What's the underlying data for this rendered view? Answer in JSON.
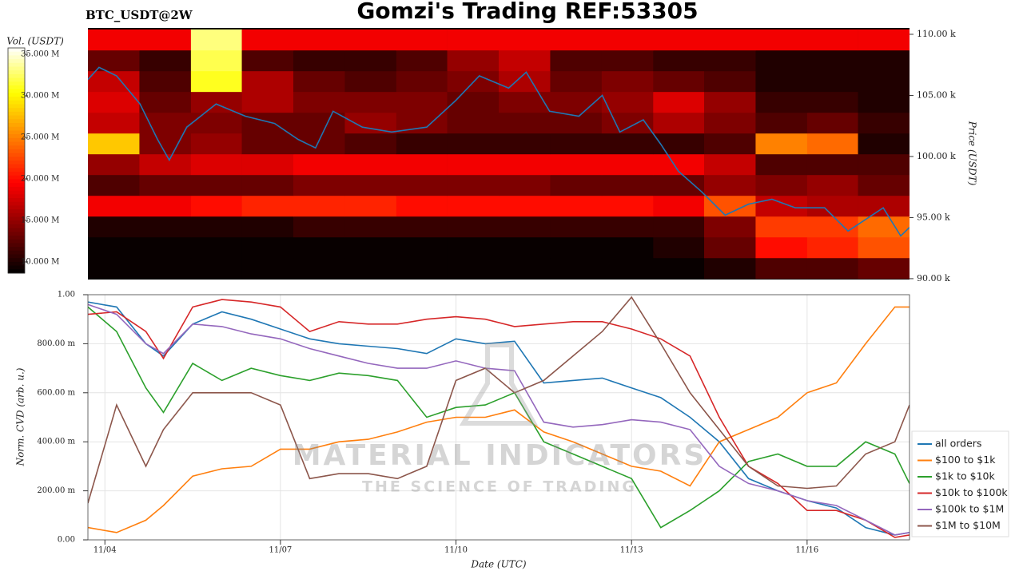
{
  "chart_data": [
    {
      "type": "heatmap",
      "title": "Gomzi's Trading REF:53305",
      "subtitle": "BTC_USDT@2W",
      "ylabel": "Price (USDT)",
      "xlim": [
        3.71,
        17.75
      ],
      "ylim": [
        89.93,
        110.52
      ],
      "yticks": [
        {
          "value": 90,
          "label": "90.00 k"
        },
        {
          "value": 95,
          "label": "95.00 k"
        },
        {
          "value": 100,
          "label": "100.00 k"
        },
        {
          "value": 105,
          "label": "105.00 k"
        },
        {
          "value": 110,
          "label": "110.00 k"
        }
      ],
      "xbins": [
        3.71,
        4.59,
        5.47,
        6.34,
        7.22,
        8.1,
        8.98,
        9.85,
        10.73,
        11.61,
        12.49,
        13.37,
        14.24,
        15.12,
        16.0,
        16.87,
        17.75
      ],
      "ybins": [
        90,
        91.7,
        93.4,
        95.1,
        96.8,
        98.5,
        100.2,
        101.9,
        103.6,
        105.3,
        107,
        108.7,
        110.4
      ],
      "z": [
        [
          9,
          9,
          9,
          9,
          9,
          9,
          9,
          9,
          9,
          9,
          9,
          9,
          10,
          12,
          12,
          13
        ],
        [
          9,
          9,
          9,
          9,
          9,
          9,
          9,
          9,
          9,
          9,
          9,
          10,
          13,
          20,
          21,
          23
        ],
        [
          10,
          10,
          10,
          10,
          11,
          11,
          11,
          11,
          11,
          11,
          11,
          11,
          14,
          22,
          22,
          24
        ],
        [
          19,
          19,
          20,
          21,
          21,
          21,
          20,
          20,
          20,
          20,
          20,
          19,
          23,
          17,
          16,
          16
        ],
        [
          12,
          13,
          13,
          13,
          14,
          14,
          14,
          14,
          14,
          13,
          13,
          13,
          15,
          14,
          15,
          13
        ],
        [
          15,
          17,
          18,
          18,
          19,
          19,
          19,
          19,
          19,
          19,
          19,
          19,
          17,
          12,
          12,
          12
        ],
        [
          28,
          14,
          15,
          13,
          13,
          12,
          11,
          11,
          11,
          11,
          11,
          11,
          12,
          25,
          24,
          10
        ],
        [
          17,
          14,
          14,
          13,
          13,
          15,
          14,
          13,
          13,
          13,
          14,
          16,
          14,
          12,
          13,
          11
        ],
        [
          18,
          13,
          15,
          16,
          14,
          14,
          14,
          13,
          14,
          14,
          15,
          18,
          15,
          11,
          11,
          10
        ],
        [
          17,
          12,
          31,
          16,
          13,
          12,
          13,
          14,
          16,
          13,
          14,
          13,
          12,
          10,
          10,
          10
        ],
        [
          13,
          11,
          32,
          12,
          11,
          11,
          12,
          15,
          17,
          12,
          12,
          11,
          11,
          10,
          10,
          10
        ],
        [
          19,
          19,
          33,
          19,
          19,
          19,
          19,
          19,
          19,
          19,
          19,
          19,
          19,
          19,
          19,
          19
        ]
      ],
      "colorbar": {
        "label": "Vol. (USDT)",
        "lim": [
          8.65,
          35.77
        ],
        "ticks": [
          {
            "value": 10,
            "label": "10.000 M"
          },
          {
            "value": 15,
            "label": "15.000 M"
          },
          {
            "value": 20,
            "label": "20.000 M"
          },
          {
            "value": 25,
            "label": "25.000 M"
          },
          {
            "value": 30,
            "label": "30.000 M"
          },
          {
            "value": 35,
            "label": "35.000 M"
          }
        ]
      },
      "line": {
        "color": "#1f77b4",
        "x": [
          3.71,
          3.9,
          4.2,
          4.6,
          4.9,
          5.1,
          5.4,
          5.9,
          6.4,
          6.9,
          7.3,
          7.6,
          7.9,
          8.4,
          8.9,
          9.5,
          10.0,
          10.4,
          10.9,
          11.2,
          11.6,
          12.1,
          12.5,
          12.8,
          13.2,
          13.5,
          13.8,
          14.2,
          14.6,
          15.0,
          15.4,
          15.8,
          16.3,
          16.7,
          17.3,
          17.6,
          17.75
        ],
        "values": [
          106.3,
          107.3,
          106.6,
          104.3,
          101.4,
          99.7,
          102.4,
          104.3,
          103.3,
          102.7,
          101.4,
          100.7,
          103.7,
          102.4,
          102.0,
          102.4,
          104.6,
          106.6,
          105.6,
          106.9,
          103.7,
          103.3,
          105.0,
          102.0,
          103.0,
          101.0,
          98.8,
          97.1,
          95.2,
          96.1,
          96.5,
          95.8,
          95.8,
          93.9,
          95.8,
          93.5,
          94.2
        ]
      }
    },
    {
      "type": "line",
      "xlabel": "Date (UTC)",
      "ylabel": "Norm. CVD (arb. u.)",
      "xlim": [
        3.71,
        17.75
      ],
      "xticks": [
        {
          "value": 4,
          "label": "11/04"
        },
        {
          "value": 7,
          "label": "11/07"
        },
        {
          "value": 10,
          "label": "11/10"
        },
        {
          "value": 13,
          "label": "11/13"
        },
        {
          "value": 16,
          "label": "11/16"
        }
      ],
      "ylim": [
        0,
        1
      ],
      "yticks": [
        {
          "value": 0,
          "label": "0.00"
        },
        {
          "value": 0.2,
          "label": "200.00 m"
        },
        {
          "value": 0.4,
          "label": "400.00 m"
        },
        {
          "value": 0.6,
          "label": "600.00 m"
        },
        {
          "value": 0.8,
          "label": "800.00 m"
        },
        {
          "value": 1,
          "label": "1.00"
        }
      ],
      "grid": true,
      "legend": "right",
      "watermark": {
        "title": "MATERIAL INDICATORS",
        "subtitle": "THE SCIENCE OF TRADING"
      },
      "x": [
        3.71,
        4.2,
        4.7,
        5.0,
        5.5,
        6.0,
        6.5,
        7.0,
        7.5,
        8.0,
        8.5,
        9.0,
        9.5,
        10.0,
        10.5,
        11.0,
        11.5,
        12.0,
        12.5,
        13.0,
        13.5,
        14.0,
        14.5,
        15.0,
        15.5,
        16.0,
        16.5,
        17.0,
        17.5,
        17.75
      ],
      "series": [
        {
          "name": "all orders",
          "color": "#1f77b4",
          "values": [
            0.97,
            0.95,
            0.8,
            0.75,
            0.88,
            0.93,
            0.9,
            0.86,
            0.82,
            0.8,
            0.79,
            0.78,
            0.76,
            0.82,
            0.8,
            0.81,
            0.64,
            0.65,
            0.66,
            0.62,
            0.58,
            0.5,
            0.4,
            0.25,
            0.2,
            0.16,
            0.13,
            0.05,
            0.02,
            0.03
          ]
        },
        {
          "name": "$100 to $1k",
          "color": "#ff7f0e",
          "values": [
            0.05,
            0.03,
            0.08,
            0.14,
            0.26,
            0.29,
            0.3,
            0.37,
            0.37,
            0.4,
            0.41,
            0.44,
            0.48,
            0.5,
            0.5,
            0.53,
            0.44,
            0.4,
            0.35,
            0.3,
            0.28,
            0.22,
            0.4,
            0.45,
            0.5,
            0.6,
            0.64,
            0.8,
            0.95,
            0.95
          ]
        },
        {
          "name": "$1k to $10k",
          "color": "#2ca02c",
          "values": [
            0.95,
            0.85,
            0.62,
            0.52,
            0.72,
            0.65,
            0.7,
            0.67,
            0.65,
            0.68,
            0.67,
            0.65,
            0.5,
            0.54,
            0.55,
            0.6,
            0.4,
            0.35,
            0.3,
            0.25,
            0.05,
            0.12,
            0.2,
            0.32,
            0.35,
            0.3,
            0.3,
            0.4,
            0.35,
            0.23
          ]
        },
        {
          "name": "$10k to $100k",
          "color": "#d62728",
          "values": [
            0.92,
            0.93,
            0.85,
            0.74,
            0.95,
            0.98,
            0.97,
            0.95,
            0.85,
            0.89,
            0.88,
            0.88,
            0.9,
            0.91,
            0.9,
            0.87,
            0.88,
            0.89,
            0.89,
            0.86,
            0.82,
            0.75,
            0.5,
            0.3,
            0.23,
            0.12,
            0.12,
            0.08,
            0.01,
            0.02
          ]
        },
        {
          "name": "$100k to $1M",
          "color": "#9467bd",
          "values": [
            0.96,
            0.92,
            0.8,
            0.76,
            0.88,
            0.87,
            0.84,
            0.82,
            0.78,
            0.75,
            0.72,
            0.7,
            0.7,
            0.73,
            0.7,
            0.69,
            0.48,
            0.46,
            0.47,
            0.49,
            0.48,
            0.45,
            0.3,
            0.23,
            0.2,
            0.16,
            0.14,
            0.08,
            0.02,
            0.03
          ]
        },
        {
          "name": "$1M to $10M",
          "color": "#8c564b",
          "values": [
            0.15,
            0.55,
            0.3,
            0.45,
            0.6,
            0.6,
            0.6,
            0.55,
            0.25,
            0.27,
            0.27,
            0.25,
            0.3,
            0.65,
            0.7,
            0.6,
            0.65,
            0.75,
            0.85,
            0.99,
            0.8,
            0.6,
            0.45,
            0.3,
            0.22,
            0.21,
            0.22,
            0.35,
            0.4,
            0.55
          ]
        }
      ]
    }
  ]
}
